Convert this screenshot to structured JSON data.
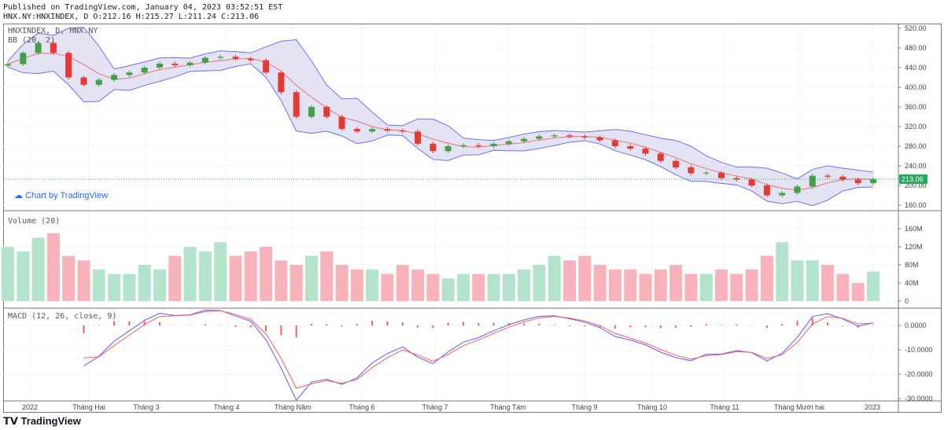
{
  "header": {
    "published": "Published on TradingView.com, January 04, 2023 03:52:51 EST",
    "ohlc": "HNX.NY:HNXINDEX, D O:212.16 H:215.27 L:211.24 C:213.06"
  },
  "legend": {
    "symbol": "HNXINDEX, D, HNX.NY",
    "bb": "BB (20, 2)",
    "volume": "Volume (20)",
    "macd": "MACD (12, 26, close, 9)"
  },
  "credit": "Chart by TradingView",
  "logo": "TradingView",
  "colors": {
    "up": "#43a047",
    "down": "#e53935",
    "vol_up": "#b4e3cc",
    "vol_down": "#f8b3ba",
    "bb_line": "#6f6ff0",
    "bb_fill": "#e3e3f4",
    "bb_basis": "#e57373",
    "macd": "#5a5aff",
    "signal": "#ff5a5a",
    "last_price": "#26a65b"
  },
  "chart_data": {
    "type": "candlestick",
    "last_price": "213.06",
    "price_axis": {
      "ticks": [
        "520.00",
        "480.00",
        "440.00",
        "400.00",
        "360.00",
        "320.00",
        "280.00",
        "240.00",
        "200.00",
        "160.00"
      ],
      "range": [
        160,
        520
      ]
    },
    "volume_axis": {
      "ticks": [
        "160M",
        "120M",
        "80M",
        "40M",
        "0"
      ],
      "range": [
        0,
        160
      ]
    },
    "macd_axis": {
      "ticks": [
        "0.0000",
        "-10.0000",
        "-20.0000",
        "-30.0000"
      ],
      "range": [
        -30,
        0
      ]
    },
    "x_ticks": [
      "2022",
      "Tháng Hai",
      "Tháng 3",
      "Tháng 4",
      "Tháng Năm",
      "Tháng 6",
      "Tháng 7",
      "Tháng Tám",
      "Tháng 9",
      "Tháng 10",
      "Tháng 11",
      "Tháng Mười hai",
      "2023"
    ],
    "close": [
      447,
      470,
      490,
      470,
      420,
      405,
      415,
      425,
      430,
      440,
      448,
      445,
      450,
      460,
      462,
      458,
      455,
      430,
      390,
      340,
      360,
      340,
      315,
      310,
      315,
      312,
      310,
      285,
      270,
      280,
      282,
      280,
      285,
      290,
      295,
      300,
      302,
      300,
      298,
      292,
      280,
      275,
      265,
      250,
      237,
      225,
      226,
      215,
      212,
      200,
      180,
      185,
      198,
      220,
      218,
      212,
      205,
      213.06
    ],
    "volume_m": [
      120,
      110,
      140,
      150,
      100,
      90,
      70,
      60,
      60,
      80,
      70,
      100,
      120,
      110,
      130,
      100,
      110,
      120,
      90,
      80,
      100,
      110,
      80,
      70,
      70,
      60,
      80,
      70,
      60,
      50,
      60,
      60,
      60,
      60,
      70,
      80,
      100,
      90,
      100,
      80,
      70,
      70,
      60,
      70,
      80,
      60,
      60,
      70,
      60,
      70,
      100,
      130,
      90,
      90,
      80,
      60,
      40,
      65
    ]
  }
}
